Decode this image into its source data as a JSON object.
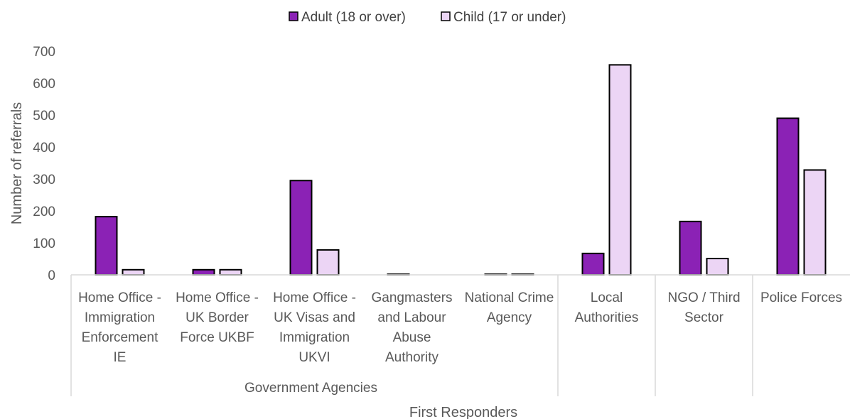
{
  "chart_data": {
    "type": "bar",
    "ylabel": "Number of referrals",
    "xlabel": "First Responders",
    "ylim": [
      0,
      700
    ],
    "yticks": [
      0,
      100,
      200,
      300,
      400,
      500,
      600,
      700
    ],
    "grid": false,
    "legend_position": "top",
    "categories": [
      "Home Office - Immigration Enforcement IE",
      "Home Office - UK Border Force UKBF",
      "Home Office - UK Visas and Immigration UKVI",
      "Gangmasters and Labour Abuse Authority",
      "National Crime Agency",
      "Local Authorities",
      "NGO / Third Sector",
      "Police Forces"
    ],
    "category_label_lines": [
      [
        "Home Office -",
        "Immigration",
        "Enforcement",
        "IE"
      ],
      [
        "Home Office -",
        "UK Border",
        "Force UKBF"
      ],
      [
        "Home Office -",
        "UK Visas and",
        "Immigration",
        "UKVI"
      ],
      [
        "Gangmasters",
        "and Labour",
        "Abuse",
        "Authority"
      ],
      [
        "National Crime",
        "Agency"
      ],
      [
        "Local",
        "Authorities"
      ],
      [
        "NGO / Third",
        "Sector"
      ],
      [
        "Police Forces"
      ]
    ],
    "groups": [
      {
        "label": "Government Agencies",
        "from": 0,
        "to": 4
      },
      {
        "label": "",
        "from": 5,
        "to": 5
      },
      {
        "label": "",
        "from": 6,
        "to": 6
      },
      {
        "label": "",
        "from": 7,
        "to": 7
      }
    ],
    "series": [
      {
        "name": "Adult (18 or over)",
        "color": "#8B22B5",
        "values": [
          182,
          16,
          295,
          2,
          2,
          67,
          167,
          490
        ]
      },
      {
        "name": "Child (17 or under)",
        "color": "#ECD5F5",
        "values": [
          16,
          16,
          78,
          0,
          2,
          657,
          51,
          328
        ]
      }
    ]
  }
}
